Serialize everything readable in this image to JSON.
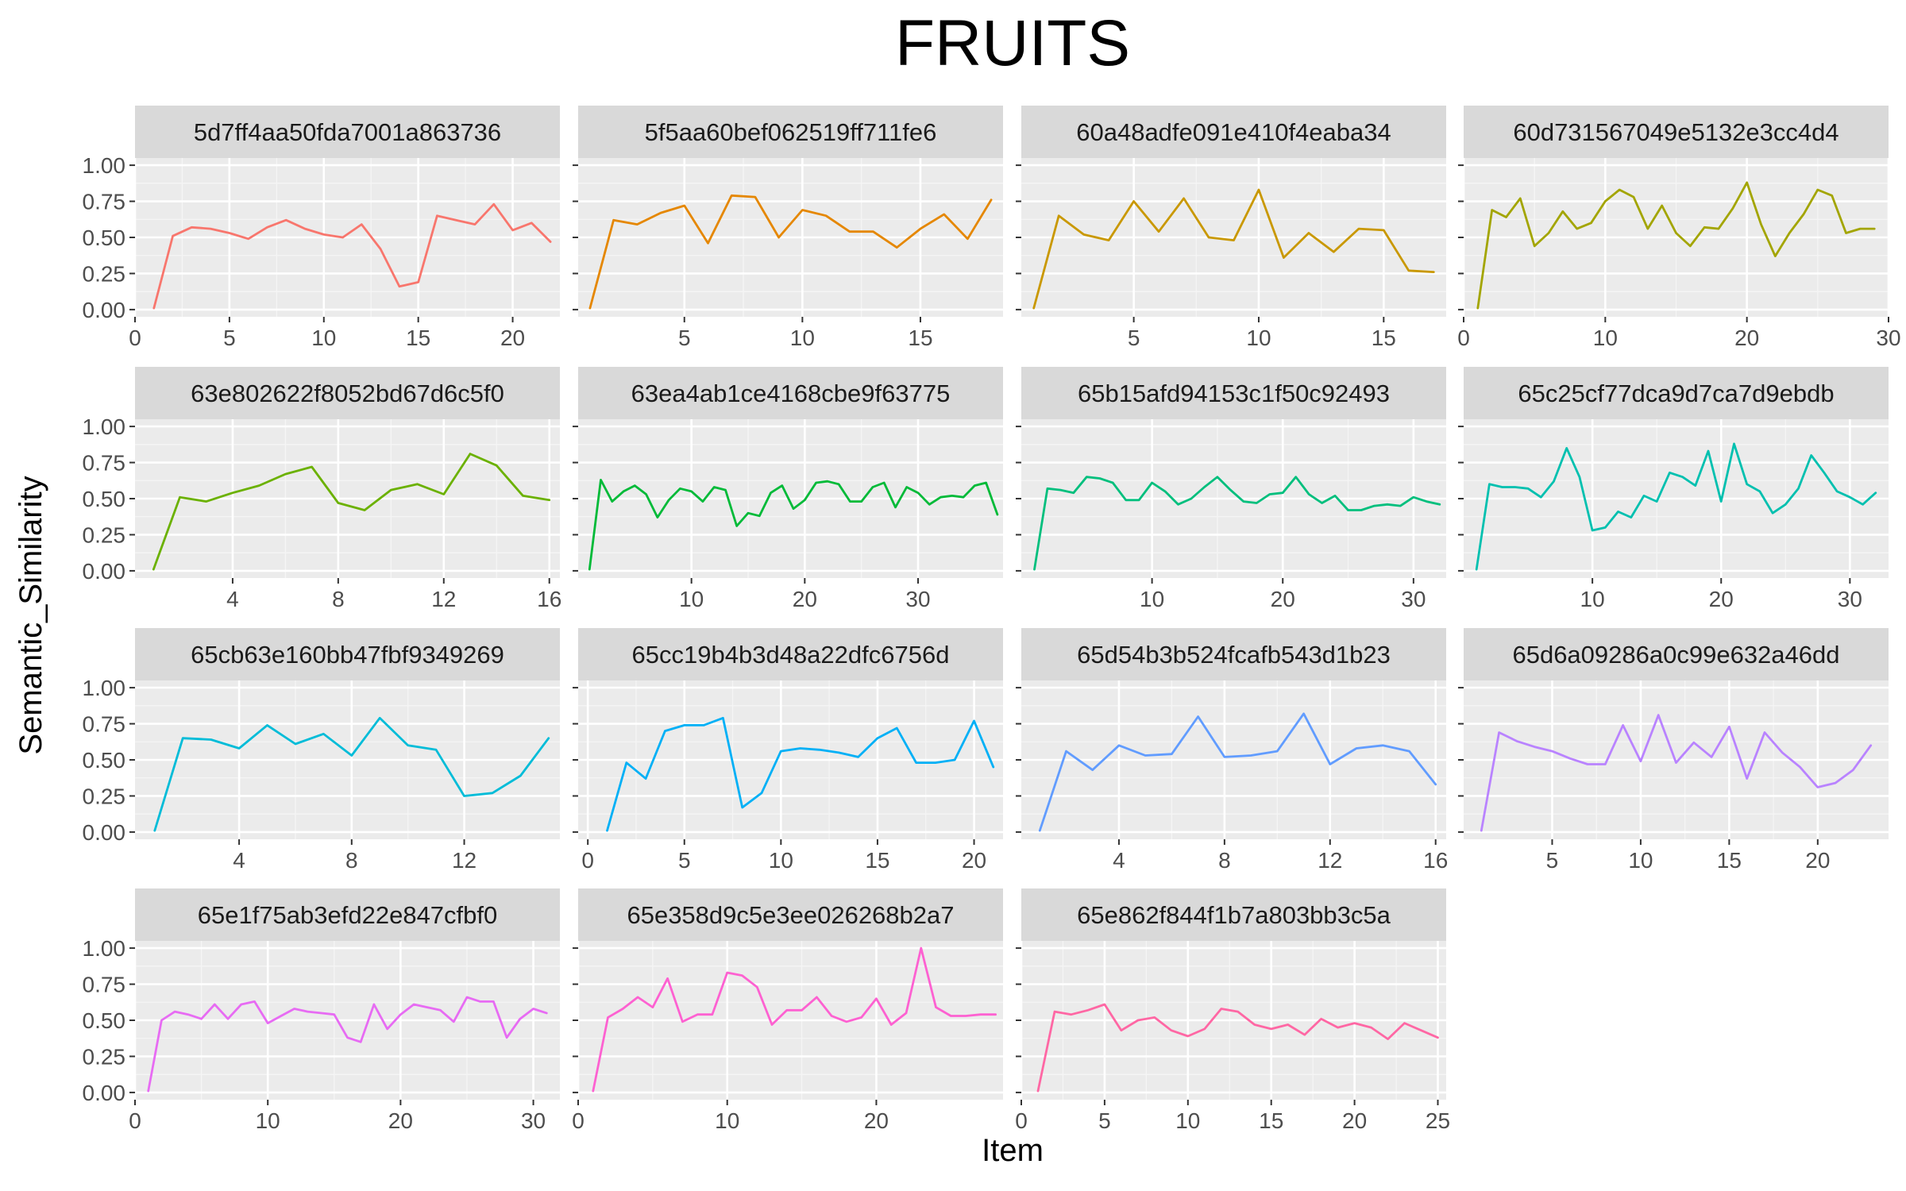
{
  "chart_data": {
    "type": "line",
    "title": "FRUITS",
    "xlabel": "Item",
    "ylabel": "Semantic_Similarity",
    "ylim": [
      0,
      1
    ],
    "y_ticks": [
      "0.00",
      "0.25",
      "0.50",
      "0.75",
      "1.00"
    ],
    "grid": true,
    "layout": "facet-wrap 4 columns, free x scales",
    "panels": [
      {
        "name": "5d7ff4aa50fda7001a863736",
        "color": "#F8766D",
        "x_ticks": [
          0,
          5,
          10,
          15,
          20
        ],
        "xlim": [
          0,
          22.5
        ],
        "values": [
          0.01,
          0.51,
          0.57,
          0.56,
          0.53,
          0.49,
          0.57,
          0.62,
          0.56,
          0.52,
          0.5,
          0.59,
          0.42,
          0.16,
          0.19,
          0.65,
          0.62,
          0.59,
          0.73,
          0.55,
          0.6,
          0.47
        ]
      },
      {
        "name": "5f5aa60bef062519ff711fe6",
        "color": "#E58700",
        "x_ticks": [
          5,
          10,
          15
        ],
        "xlim": [
          0.5,
          18.5
        ],
        "values": [
          0.01,
          0.62,
          0.59,
          0.67,
          0.72,
          0.46,
          0.79,
          0.78,
          0.5,
          0.69,
          0.65,
          0.54,
          0.54,
          0.43,
          0.56,
          0.66,
          0.49,
          0.76
        ]
      },
      {
        "name": "60a48adfe091e410f4eaba34",
        "color": "#C99800",
        "x_ticks": [
          5,
          10,
          15
        ],
        "xlim": [
          0.5,
          17.5
        ],
        "values": [
          0.01,
          0.65,
          0.52,
          0.48,
          0.75,
          0.54,
          0.77,
          0.5,
          0.48,
          0.83,
          0.36,
          0.53,
          0.4,
          0.56,
          0.55,
          0.27,
          0.26
        ]
      },
      {
        "name": "60d731567049e5132e3cc4d4",
        "color": "#A3A500",
        "x_ticks": [
          0,
          10,
          20,
          30
        ],
        "xlim": [
          0,
          30
        ],
        "values": [
          0.01,
          0.69,
          0.64,
          0.77,
          0.44,
          0.53,
          0.68,
          0.56,
          0.6,
          0.75,
          0.83,
          0.78,
          0.56,
          0.72,
          0.53,
          0.44,
          0.57,
          0.56,
          0.7,
          0.88,
          0.59,
          0.37,
          0.53,
          0.66,
          0.83,
          0.79,
          0.53,
          0.56,
          0.56
        ]
      },
      {
        "name": "63e802622f8052bd67d6c5f0",
        "color": "#6BB100",
        "x_ticks": [
          4,
          8,
          12,
          16
        ],
        "xlim": [
          0.3,
          16.4
        ],
        "values": [
          0.01,
          0.51,
          0.48,
          0.54,
          0.59,
          0.67,
          0.72,
          0.47,
          0.42,
          0.56,
          0.6,
          0.53,
          0.81,
          0.73,
          0.52,
          0.49
        ]
      },
      {
        "name": "63ea4ab1ce4168cbe9f63775",
        "color": "#00BA38",
        "x_ticks": [
          10,
          20,
          30
        ],
        "xlim": [
          0,
          37.5
        ],
        "values": [
          0.01,
          0.63,
          0.48,
          0.55,
          0.59,
          0.53,
          0.37,
          0.49,
          0.57,
          0.55,
          0.48,
          0.58,
          0.56,
          0.31,
          0.4,
          0.38,
          0.54,
          0.59,
          0.43,
          0.49,
          0.61,
          0.62,
          0.6,
          0.48,
          0.48,
          0.58,
          0.61,
          0.44,
          0.58,
          0.54,
          0.46,
          0.51,
          0.52,
          0.51,
          0.59,
          0.61,
          0.39
        ]
      },
      {
        "name": "65b15afd94153c1f50c92493",
        "color": "#00BF7D",
        "x_ticks": [
          10,
          20,
          30
        ],
        "xlim": [
          0,
          32.5
        ],
        "values": [
          0.01,
          0.57,
          0.56,
          0.54,
          0.65,
          0.64,
          0.61,
          0.49,
          0.49,
          0.61,
          0.55,
          0.46,
          0.5,
          0.58,
          0.65,
          0.56,
          0.48,
          0.47,
          0.53,
          0.54,
          0.65,
          0.53,
          0.47,
          0.52,
          0.42,
          0.42,
          0.45,
          0.46,
          0.45,
          0.51,
          0.48,
          0.46
        ]
      },
      {
        "name": "65c25cf77dca9d7ca7d9ebdb",
        "color": "#00C0AF",
        "x_ticks": [
          10,
          20,
          30
        ],
        "xlim": [
          0,
          33
        ],
        "values": [
          0.01,
          0.6,
          0.58,
          0.58,
          0.57,
          0.51,
          0.62,
          0.85,
          0.65,
          0.28,
          0.3,
          0.41,
          0.37,
          0.52,
          0.48,
          0.68,
          0.65,
          0.59,
          0.83,
          0.48,
          0.88,
          0.6,
          0.55,
          0.4,
          0.46,
          0.57,
          0.8,
          0.68,
          0.55,
          0.51,
          0.46,
          0.54
        ]
      },
      {
        "name": "65cb63e160bb47fbf9349269",
        "color": "#00BCD8",
        "x_ticks": [
          4,
          8,
          12
        ],
        "xlim": [
          0.3,
          15.4
        ],
        "values": [
          0.01,
          0.65,
          0.64,
          0.58,
          0.74,
          0.61,
          0.68,
          0.53,
          0.79,
          0.6,
          0.57,
          0.25,
          0.27,
          0.39,
          0.65
        ]
      },
      {
        "name": "65cc19b4b3d48a22dfc6756d",
        "color": "#00B0F6",
        "x_ticks": [
          0,
          5,
          10,
          15,
          20
        ],
        "xlim": [
          -0.5,
          21.5
        ],
        "values": [
          0.01,
          0.48,
          0.37,
          0.7,
          0.74,
          0.74,
          0.79,
          0.17,
          0.27,
          0.56,
          0.58,
          0.57,
          0.55,
          0.52,
          0.65,
          0.72,
          0.48,
          0.48,
          0.5,
          0.77,
          0.45
        ]
      },
      {
        "name": "65d54b3b524fcafb543d1b23",
        "color": "#619CFF",
        "x_ticks": [
          4,
          8,
          12,
          16
        ],
        "xlim": [
          0.3,
          16.4
        ],
        "values": [
          0.01,
          0.56,
          0.43,
          0.6,
          0.53,
          0.54,
          0.8,
          0.52,
          0.53,
          0.56,
          0.82,
          0.47,
          0.58,
          0.6,
          0.56,
          0.33
        ]
      },
      {
        "name": "65d6a09286a0c99e632a46dd",
        "color": "#B983FF",
        "x_ticks": [
          5,
          10,
          15,
          20
        ],
        "xlim": [
          0,
          24
        ],
        "values": [
          0.01,
          0.69,
          0.63,
          0.59,
          0.56,
          0.51,
          0.47,
          0.47,
          0.74,
          0.49,
          0.81,
          0.48,
          0.62,
          0.52,
          0.73,
          0.37,
          0.69,
          0.55,
          0.45,
          0.31,
          0.34,
          0.43,
          0.6
        ]
      },
      {
        "name": "65e1f75ab3efd22e847cfbf0",
        "color": "#E76BF3",
        "x_ticks": [
          0,
          10,
          20,
          30
        ],
        "xlim": [
          0,
          32
        ],
        "values": [
          0.01,
          0.5,
          0.56,
          0.54,
          0.51,
          0.61,
          0.51,
          0.61,
          0.63,
          0.48,
          0.53,
          0.58,
          0.56,
          0.55,
          0.54,
          0.38,
          0.35,
          0.61,
          0.44,
          0.54,
          0.61,
          0.59,
          0.57,
          0.49,
          0.66,
          0.63,
          0.63,
          0.38,
          0.51,
          0.58,
          0.55
        ]
      },
      {
        "name": "65e358d9c5e3ee026268b2a7",
        "color": "#FD61D1",
        "x_ticks": [
          0,
          10,
          20
        ],
        "xlim": [
          0,
          28.5
        ],
        "values": [
          0.01,
          0.52,
          0.58,
          0.66,
          0.59,
          0.79,
          0.49,
          0.54,
          0.54,
          0.83,
          0.81,
          0.73,
          0.47,
          0.57,
          0.57,
          0.66,
          0.53,
          0.49,
          0.52,
          0.65,
          0.47,
          0.55,
          1.0,
          0.59,
          0.53,
          0.53,
          0.54,
          0.54
        ]
      },
      {
        "name": "65e862f844f1b7a803bb3c5a",
        "color": "#FF67A4",
        "x_ticks": [
          0,
          5,
          10,
          15,
          20,
          25
        ],
        "xlim": [
          0,
          25.5
        ],
        "values": [
          0.01,
          0.56,
          0.54,
          0.57,
          0.61,
          0.43,
          0.5,
          0.52,
          0.43,
          0.39,
          0.44,
          0.58,
          0.56,
          0.47,
          0.44,
          0.47,
          0.4,
          0.51,
          0.45,
          0.48,
          0.45,
          0.37,
          0.48,
          0.43,
          0.38
        ]
      }
    ]
  }
}
